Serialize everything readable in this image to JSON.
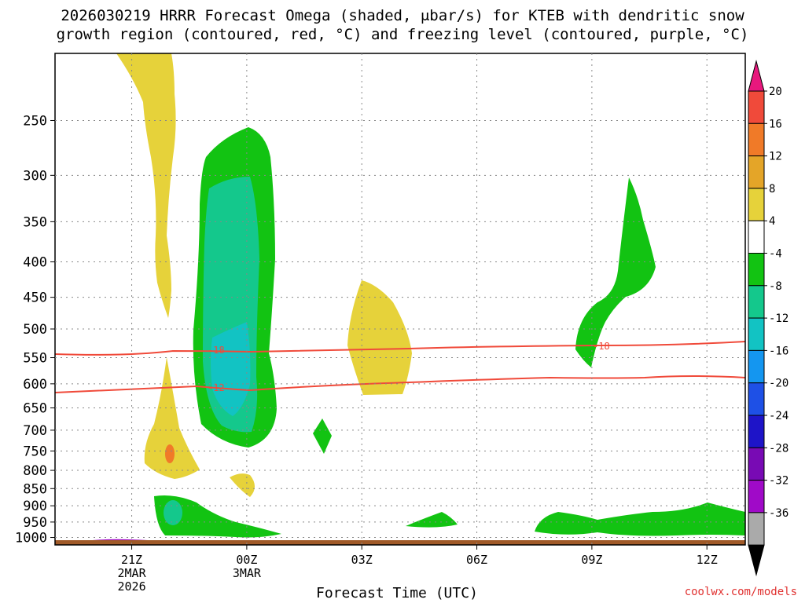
{
  "chart": {
    "title_line1": "2026030219 HRRR Forecast Omega (shaded, μbar/s) for KTEB with dendritic snow",
    "title_line2": "growth region (contoured, red, °C) and freezing level (contoured, purple, °C)",
    "x_axis_label": "Forecast Time (UTC)",
    "credit": "coolwx.com/models"
  },
  "chart_data": {
    "type": "time-height contour",
    "x_ticks": [
      {
        "label": "21Z",
        "sub1": "2MAR",
        "sub2": "2026",
        "hour": 21
      },
      {
        "label": "00Z",
        "sub1": "3MAR",
        "sub2": "",
        "hour": 24
      },
      {
        "label": "03Z",
        "sub1": "",
        "sub2": "",
        "hour": 27
      },
      {
        "label": "06Z",
        "sub1": "",
        "sub2": "",
        "hour": 30
      },
      {
        "label": "09Z",
        "sub1": "",
        "sub2": "",
        "hour": 33
      },
      {
        "label": "12Z",
        "sub1": "",
        "sub2": "",
        "hour": 36
      }
    ],
    "x_range_hours": [
      19,
      37
    ],
    "y_ticks": [
      250,
      300,
      350,
      400,
      450,
      500,
      550,
      600,
      650,
      700,
      750,
      800,
      850,
      900,
      950,
      1000
    ],
    "y_range_hpa": [
      200,
      1025
    ],
    "colorbar": {
      "labels": [
        "20",
        "16",
        "12",
        "8",
        "4",
        "-4",
        "-8",
        "-12",
        "-16",
        "-20",
        "-24",
        "-28",
        "-32",
        "-36"
      ],
      "colors": [
        "#e8187d",
        "#f04a3a",
        "#f07a28",
        "#e4a528",
        "#e6d23a",
        "#ffffff",
        "#12c312",
        "#14c88c",
        "#12c3c3",
        "#1496f0",
        "#1e50e6",
        "#1e14c8",
        "#780ab4",
        "#a00ac8",
        "#aaaaaa",
        "#000000"
      ]
    },
    "contours": [
      {
        "name": "dendritic-top",
        "value": "-18",
        "color": "#f04a3a"
      },
      {
        "name": "dendritic-bottom",
        "value": "-12",
        "color": "#f04a3a"
      }
    ]
  }
}
